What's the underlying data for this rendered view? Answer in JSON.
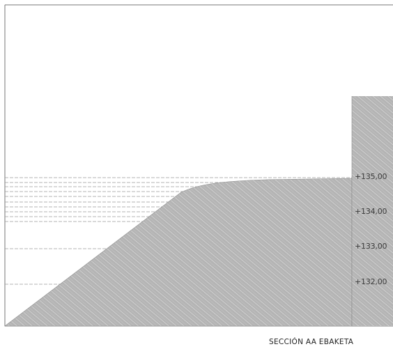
{
  "caption": "SECCIÓN AA EBAKETA",
  "elevations": [
    {
      "label": "+135,00",
      "value": 135
    },
    {
      "label": "+134,00",
      "value": 134
    },
    {
      "label": "+133,00",
      "value": 133
    },
    {
      "label": "+132,00",
      "value": 132
    }
  ],
  "colors": {
    "hatch_fill": "#b4b4b4",
    "hatch_line": "#e6e6e6",
    "frame": "#777777",
    "dashed": "#9a9a9a"
  }
}
